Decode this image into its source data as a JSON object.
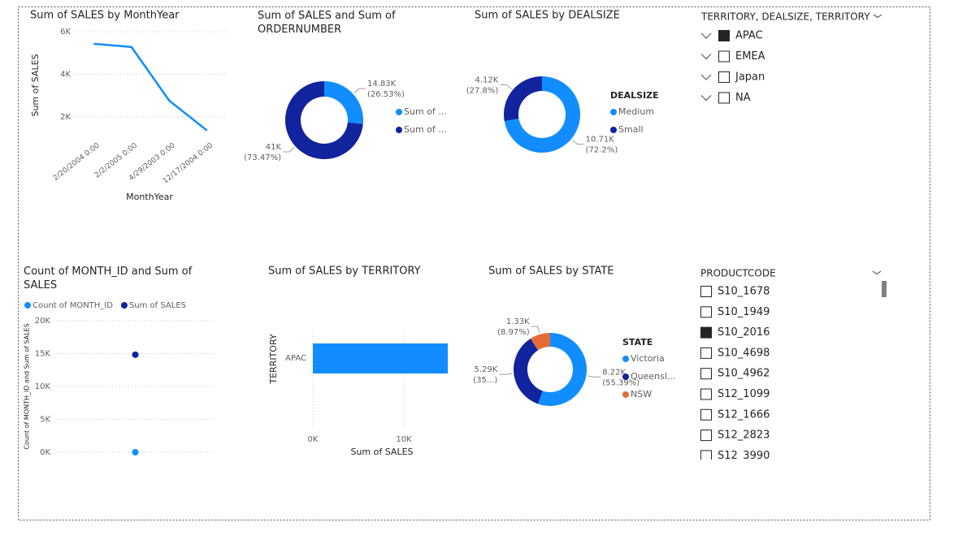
{
  "chart_data": [
    {
      "type": "line",
      "title": "Sum of SALES by MonthYear",
      "categories": [
        "2/20/2004 0:00",
        "2/2/2005 0:00",
        "4/29/2003 0:00",
        "12/17/2004 0:00"
      ],
      "values": [
        5430,
        5280,
        2760,
        1350
      ],
      "color": "#118dff",
      "x_label": "MonthYear",
      "y_label": "Sum of SALES",
      "ylim": [
        1000,
        6000
      ],
      "yticks": [
        {
          "value": 2000,
          "label": "2K"
        },
        {
          "value": 4000,
          "label": "4K"
        },
        {
          "value": 6000,
          "label": "6K"
        }
      ],
      "grid": true
    },
    {
      "type": "donut",
      "title": "Sum of SALES and Sum of ORDERNUMBER",
      "categories": [
        "Sum of ...",
        "Sum of ..."
      ],
      "values": [
        14830,
        41000
      ],
      "value_labels": [
        "14.83K",
        "41K"
      ],
      "percent_labels": [
        "(26.53%)",
        "(73.47%)"
      ],
      "colors": [
        "#118dff",
        "#12239e"
      ]
    },
    {
      "type": "donut",
      "title": "Sum of SALES by DEALSIZE",
      "legend_title": "DEALSIZE",
      "categories": [
        "Medium",
        "Small"
      ],
      "values": [
        10710,
        4120
      ],
      "value_labels": [
        "10.71K",
        "4.12K"
      ],
      "percent_labels": [
        "(72.2%)",
        "(27.8%)"
      ],
      "colors": [
        "#118dff",
        "#12239e"
      ]
    },
    {
      "type": "scatter",
      "title": "Count of MONTH_ID and Sum of SALES",
      "y_label": "Count of MONTH_ID and Sum of SALES",
      "series": [
        {
          "name": "Count of MONTH_ID",
          "color": "#118dff",
          "values": [
            0
          ]
        },
        {
          "name": "Sum of SALES",
          "color": "#12239e",
          "values": [
            14830
          ]
        }
      ],
      "ylim": [
        0,
        20000
      ],
      "yticks": [
        {
          "value": 0,
          "label": "0K"
        },
        {
          "value": 5000,
          "label": "5K"
        },
        {
          "value": 10000,
          "label": "10K"
        },
        {
          "value": 15000,
          "label": "15K"
        },
        {
          "value": 20000,
          "label": "20K"
        }
      ],
      "grid": true
    },
    {
      "type": "hbar",
      "title": "Sum of SALES by TERRITORY",
      "categories": [
        "APAC"
      ],
      "values": [
        14830
      ],
      "color": "#118dff",
      "x_label": "Sum of SALES",
      "y_label": "TERRITORY",
      "xlim": [
        0,
        15500
      ],
      "xticks": [
        {
          "value": 0,
          "label": "0K"
        },
        {
          "value": 10000,
          "label": "10K"
        }
      ],
      "grid": true
    },
    {
      "type": "donut",
      "title": "Sum of SALES by STATE",
      "legend_title": "STATE",
      "categories": [
        "Victoria",
        "Queensl...",
        "NSW"
      ],
      "values": [
        8220,
        5290,
        1330
      ],
      "value_labels": [
        "8.22K",
        "5.29K",
        "1.33K"
      ],
      "percent_labels": [
        "(55.39%)",
        "(35...)",
        "(8.97%)"
      ],
      "colors": [
        "#118dff",
        "#12239e",
        "#e66c37"
      ]
    }
  ],
  "slicers": [
    {
      "title": "TERRITORY, DEALSIZE, TERRITORY",
      "items": [
        "APAC",
        "EMEA",
        "Japan",
        "NA"
      ],
      "checked": [
        true,
        false,
        false,
        false
      ],
      "expandable": true
    },
    {
      "title": "PRODUCTCODE",
      "items": [
        "S10_1678",
        "S10_1949",
        "S10_2016",
        "S10_4698",
        "S10_4962",
        "S12_1099",
        "S12_1666",
        "S12_2823",
        "S12_3990"
      ],
      "checked": [
        false,
        false,
        true,
        false,
        false,
        false,
        false,
        false,
        false
      ],
      "expandable": false
    }
  ]
}
